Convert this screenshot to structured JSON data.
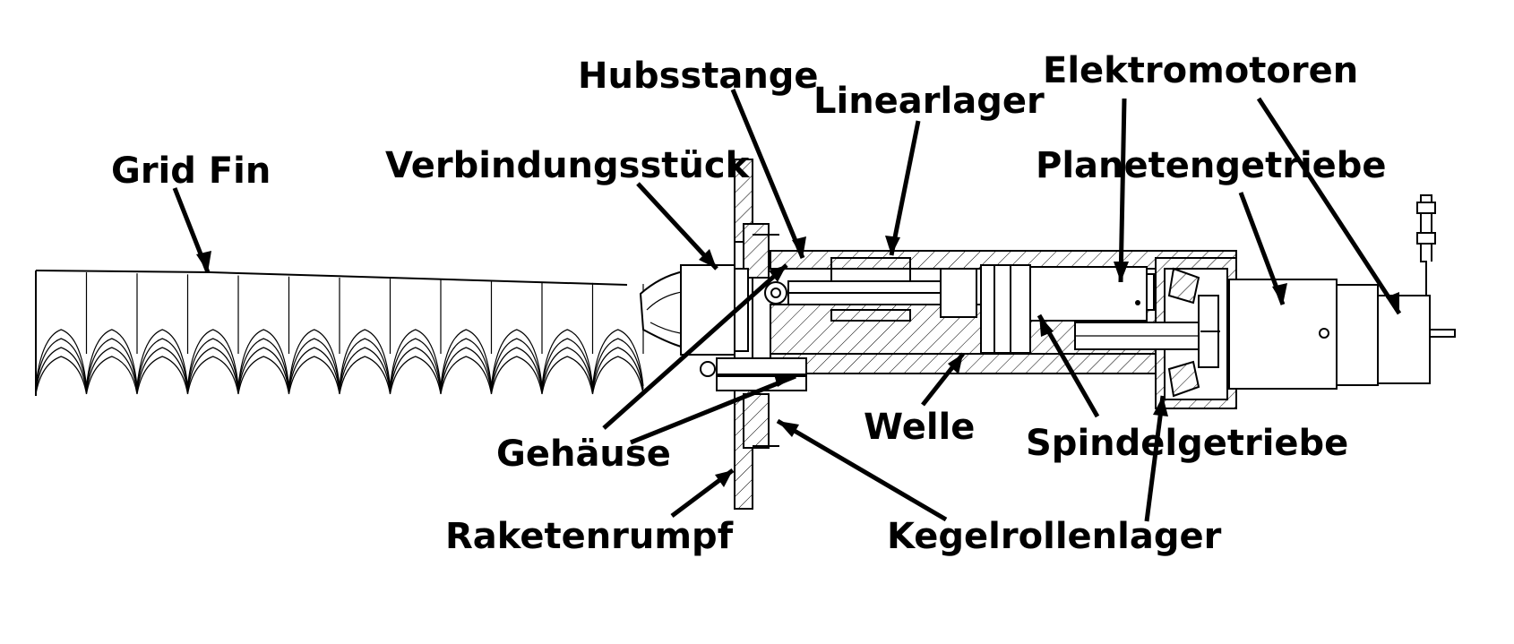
{
  "labels": {
    "grid_fin": "Grid Fin",
    "verbindungsstueck": "Verbindungsstück",
    "hubsstange": "Hubsstange",
    "linearlager": "Linearlager",
    "elektromotoren": "Elektromotoren",
    "planetengetriebe": "Planetengetriebe",
    "gehaeuse": "Gehäuse",
    "raketenrumpf": "Raketenrumpf",
    "welle": "Welle",
    "spindelgetriebe": "Spindelgetriebe",
    "kegelrollenlager": "Kegelrollenlager"
  },
  "colors": {
    "line": "#000000",
    "background": "#ffffff"
  }
}
